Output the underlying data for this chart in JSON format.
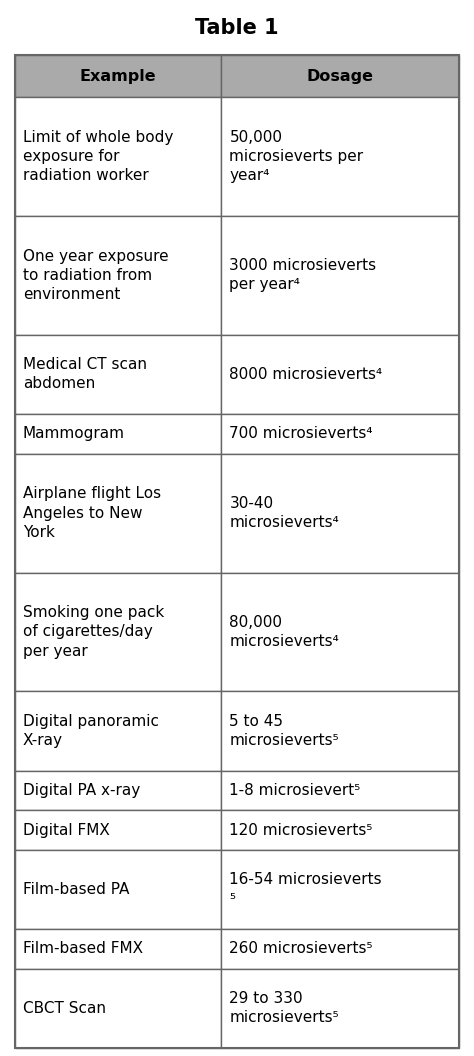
{
  "title": "Table 1",
  "col_headers": [
    "Example",
    "Dosage"
  ],
  "rows": [
    [
      "Limit of whole body\nexposure for\nradiation worker",
      "50,000\nmicrosieverts per\nyear⁴"
    ],
    [
      "One year exposure\nto radiation from\nenvironment",
      "3000 microsieverts\nper year⁴"
    ],
    [
      "Medical CT scan\nabdomen",
      "8000 microsieverts⁴"
    ],
    [
      "Mammogram",
      "700 microsieverts⁴"
    ],
    [
      "Airplane flight Los\nAngeles to New\nYork",
      "30-40\nmicrosieverts⁴"
    ],
    [
      "Smoking one pack\nof cigarettes/day\nper year",
      "80,000\nmicrosieverts⁴"
    ],
    [
      "Digital panoramic\nX-ray",
      "5 to 45\nmicrosieverts⁵"
    ],
    [
      "Digital PA x-ray",
      "1-8 microsievert⁵"
    ],
    [
      "Digital FMX",
      "120 microsieverts⁵"
    ],
    [
      "Film-based PA",
      "16-54 microsieverts\n⁵"
    ],
    [
      "Film-based FMX",
      "260 microsieverts⁵"
    ],
    [
      "CBCT Scan",
      "29 to 330\nmicrosieverts⁵"
    ]
  ],
  "header_bg": "#aaaaaa",
  "header_text_color": "#000000",
  "cell_bg": "#ffffff",
  "border_color": "#666666",
  "text_color": "#000000",
  "title_fontsize": 15,
  "header_fontsize": 11.5,
  "cell_fontsize": 11,
  "col_split": 0.465,
  "fig_width": 4.74,
  "fig_height": 10.56,
  "dpi": 100
}
